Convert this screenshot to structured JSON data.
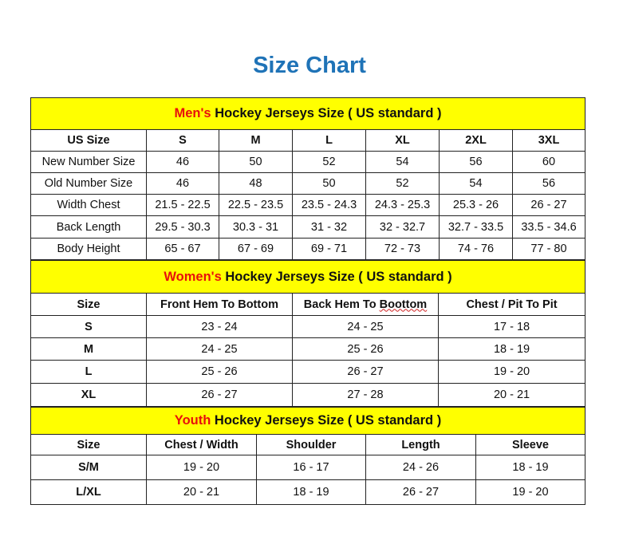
{
  "title": "Size Chart",
  "colors": {
    "title": "#1f73b7",
    "band": "#ffff00",
    "accent_red": "#e8100c"
  },
  "mens": {
    "prefix": "Men's",
    "heading": " Hockey Jerseys Size ( US standard )",
    "columns": [
      "US Size",
      "S",
      "M",
      "L",
      "XL",
      "2XL",
      "3XL"
    ],
    "rows": [
      [
        "New Number Size",
        "46",
        "50",
        "52",
        "54",
        "56",
        "60"
      ],
      [
        "Old Number Size",
        "46",
        "48",
        "50",
        "52",
        "54",
        "56"
      ],
      [
        "Width Chest",
        "21.5 - 22.5",
        "22.5 - 23.5",
        "23.5 - 24.3",
        "24.3 - 25.3",
        "25.3 - 26",
        "26 - 27"
      ],
      [
        "Back Length",
        "29.5 - 30.3",
        "30.3 - 31",
        "31 - 32",
        "32 - 32.7",
        "32.7 - 33.5",
        "33.5 - 34.6"
      ],
      [
        "Body Height",
        "65 - 67",
        "67 - 69",
        "69 - 71",
        "72 - 73",
        "74 - 76",
        "77 - 80"
      ]
    ]
  },
  "womens": {
    "prefix": "Women's",
    "heading": " Hockey Jerseys Size ( US standard )",
    "columns": [
      "Size",
      "Front Hem To Bottom",
      "Back Hem To Boottom",
      "Chest / Pit To Pit"
    ],
    "rows": [
      [
        "S",
        "23 - 24",
        "24 - 25",
        "17 - 18"
      ],
      [
        "M",
        "24 - 25",
        "25 - 26",
        "18 - 19"
      ],
      [
        "L",
        "25 - 26",
        "26 - 27",
        "19 - 20"
      ],
      [
        "XL",
        "26 - 27",
        "27 - 28",
        "20 - 21"
      ]
    ]
  },
  "youth": {
    "prefix": "Youth",
    "heading": " Hockey Jerseys Size ( US standard )",
    "columns": [
      "Size",
      "Chest / Width",
      "Shoulder",
      "Length",
      "Sleeve"
    ],
    "rows": [
      [
        "S/M",
        "19 - 20",
        "16 - 17",
        "24 - 26",
        "18 - 19"
      ],
      [
        "L/XL",
        "20 - 21",
        "18 - 19",
        "26 - 27",
        "19 - 20"
      ]
    ]
  }
}
